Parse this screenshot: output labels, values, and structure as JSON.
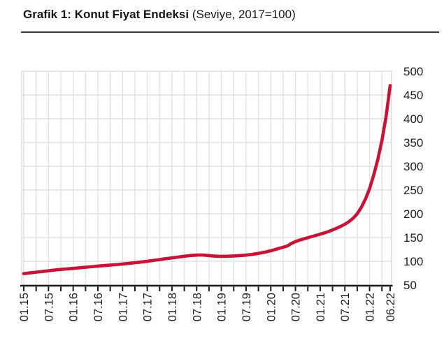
{
  "header": {
    "title": "Grafik 1: Konut Fiyat Endeksi",
    "subtitle": "(Seviye, 2017=100)"
  },
  "chart_data": {
    "type": "line",
    "title": "Grafik 1: Konut Fiyat Endeksi",
    "subtitle": "(Seviye, 2017=100)",
    "x_start": "01.2015",
    "x_end": "06.2022",
    "x_total_months": 89,
    "x_ticks": [
      {
        "label": "01.15",
        "month": 0
      },
      {
        "label": "07.15",
        "month": 6
      },
      {
        "label": "01.16",
        "month": 12
      },
      {
        "label": "07.16",
        "month": 18
      },
      {
        "label": "01.17",
        "month": 24
      },
      {
        "label": "07.17",
        "month": 30
      },
      {
        "label": "01.18",
        "month": 36
      },
      {
        "label": "07.18",
        "month": 42
      },
      {
        "label": "01.19",
        "month": 48
      },
      {
        "label": "07.19",
        "month": 54
      },
      {
        "label": "01.20",
        "month": 60
      },
      {
        "label": "07.20",
        "month": 66
      },
      {
        "label": "01.21",
        "month": 72
      },
      {
        "label": "07.21",
        "month": 78
      },
      {
        "label": "01.22",
        "month": 84
      },
      {
        "label": "06.22",
        "month": 89
      }
    ],
    "minor_tick_step_months": 3,
    "ylim": [
      50,
      500
    ],
    "y_ticks": [
      50,
      100,
      150,
      200,
      250,
      300,
      350,
      400,
      450,
      500
    ],
    "grid": true,
    "legend": "none",
    "colors": {
      "line": "#c91235",
      "grid": "#e2e2e2",
      "plot_border": "#d9d9d9",
      "axis": "#1a1a1a",
      "text": "#1d1d1d",
      "rule": "#3a3a3a"
    },
    "series": [
      {
        "name": "Konut Fiyat Endeksi",
        "color": "#c91235",
        "values": [
          74,
          75,
          76,
          77,
          78,
          79,
          80,
          81,
          82,
          82.8,
          83.6,
          84.3,
          85,
          85.8,
          86.6,
          87.4,
          88.2,
          89,
          89.8,
          90.6,
          91.3,
          92,
          92.7,
          93.4,
          94.2,
          95.1,
          96,
          97,
          98,
          99,
          100,
          101.2,
          102.4,
          103.6,
          104.8,
          106,
          107,
          108.2,
          109.4,
          110.6,
          111.6,
          112.4,
          113,
          113.2,
          112.8,
          112,
          111.2,
          110.6,
          110.4,
          110.5,
          110.8,
          111.2,
          111.6,
          112.2,
          113,
          114,
          115.2,
          116.6,
          118.2,
          120,
          122,
          124.5,
          127,
          129.5,
          132,
          137.5,
          141.5,
          144.5,
          147,
          149.5,
          152,
          154.5,
          157,
          159.5,
          162.5,
          166,
          169.5,
          173.5,
          178,
          183.5,
          190.5,
          200,
          213.5,
          231,
          253,
          281,
          314,
          354,
          404,
          470
        ]
      }
    ]
  }
}
